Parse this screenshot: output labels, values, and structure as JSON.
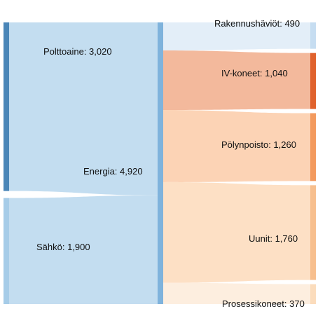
{
  "chart_data": {
    "type": "sankey",
    "unit": "",
    "sources": [
      {
        "name": "Polttoaine",
        "value": 3020,
        "label": "Polttoaine: 3,020",
        "color": "#4a86b8",
        "flow_color": "#c3ddf0"
      },
      {
        "name": "Sähkö",
        "value": 1900,
        "label": "Sähkö: 1,900",
        "color": "#a6cce8",
        "flow_color": "#c3ddf0"
      }
    ],
    "hub": {
      "name": "Energia",
      "value": 4920,
      "label": "Energia: 4,920",
      "color": "#7fb3dc"
    },
    "targets": [
      {
        "name": "Rakennushäviöt",
        "value": 490,
        "label": "Rakennushäviöt: 490",
        "color": "#c6ddf1",
        "flow_color": "#e3eef8"
      },
      {
        "name": "IV-koneet",
        "value": 1040,
        "label": "IV-koneet: 1,040",
        "color": "#e0622d",
        "flow_color": "#f3b99c"
      },
      {
        "name": "Pölynpoisto",
        "value": 1260,
        "label": "Pölynpoisto: 1,260",
        "color": "#f39a5e",
        "flow_color": "#fcd3b5"
      },
      {
        "name": "Uunit",
        "value": 1760,
        "label": "Uunit: 1,760",
        "color": "#f7bf8e",
        "flow_color": "#fde0c5"
      },
      {
        "name": "Prosessikoneet",
        "value": 370,
        "label": "Prosessikoneet: 370",
        "color": "#fbdcbc",
        "flow_color": "#fdeedf"
      }
    ]
  }
}
